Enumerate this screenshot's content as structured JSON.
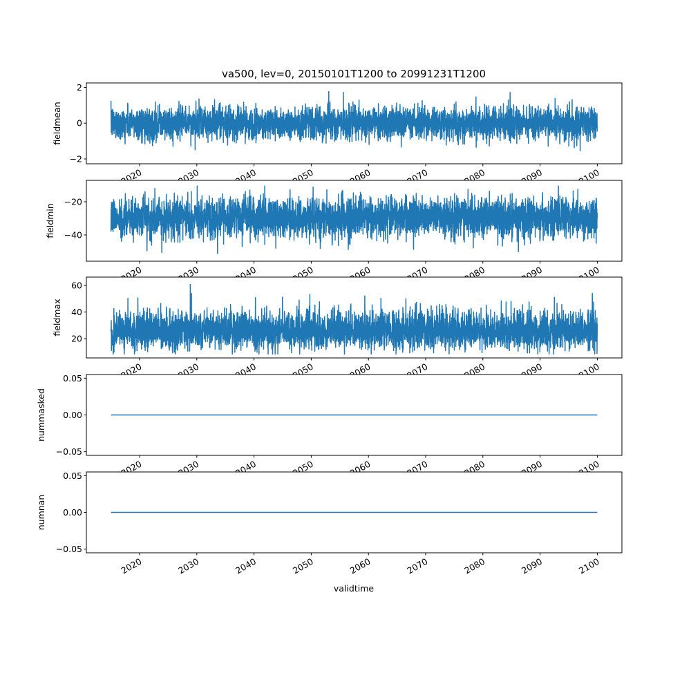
{
  "chart_data": {
    "type": "line",
    "title": "va500, lev=0, 20150101T1200 to 20991231T1200",
    "xlabel": "validtime",
    "xlim": [
      2010.7,
      2104.3
    ],
    "x_ticks": [
      "2020",
      "2030",
      "2040",
      "2050",
      "2060",
      "2070",
      "2080",
      "2090",
      "2100"
    ],
    "x_tick_values": [
      2020,
      2030,
      2040,
      2050,
      2060,
      2070,
      2080,
      2090,
      2100
    ],
    "data_range": [
      2015.0,
      2100.0
    ],
    "series_color": "#1f77b4",
    "subplots": [
      {
        "ylabel": "fieldmean",
        "ylim": [
          -2.27,
          2.25
        ],
        "y_ticks": [
          "−2",
          "0",
          "2"
        ],
        "y_tick_values": [
          -2,
          0,
          2
        ],
        "series": {
          "name": "fieldmean",
          "mean": 0.0,
          "std": 0.45,
          "min": -2.1,
          "max": 2.1
        }
      },
      {
        "ylabel": "fieldmin",
        "ylim": [
          -55.8,
          -7.1
        ],
        "y_ticks": [
          "−40",
          "−20"
        ],
        "y_tick_values": [
          -40,
          -20
        ],
        "series": {
          "name": "fieldmin",
          "mean": -29.5,
          "std": 6.0,
          "min": -53.5,
          "max": -10.5
        }
      },
      {
        "ylabel": "fieldmax",
        "ylim": [
          5.6,
          66.2
        ],
        "y_ticks": [
          "20",
          "40",
          "60"
        ],
        "y_tick_values": [
          20,
          40,
          60
        ],
        "series": {
          "name": "fieldmax",
          "mean": 25.5,
          "std": 6.5,
          "min": 8.5,
          "max": 63.5
        }
      },
      {
        "ylabel": "nummasked",
        "ylim": [
          -0.055,
          0.055
        ],
        "y_ticks": [
          "−0.05",
          "0.00",
          "0.05"
        ],
        "y_tick_values": [
          -0.05,
          0,
          0.05
        ],
        "series": {
          "name": "nummasked",
          "mean": 0.0,
          "std": 0.0,
          "min": 0.0,
          "max": 0.0
        }
      },
      {
        "ylabel": "numnan",
        "ylim": [
          -0.055,
          0.055
        ],
        "y_ticks": [
          "−0.05",
          "0.00",
          "0.05"
        ],
        "y_tick_values": [
          -0.05,
          0,
          0.05
        ],
        "series": {
          "name": "numnan",
          "mean": 0.0,
          "std": 0.0,
          "min": 0.0,
          "max": 0.0
        }
      }
    ]
  }
}
